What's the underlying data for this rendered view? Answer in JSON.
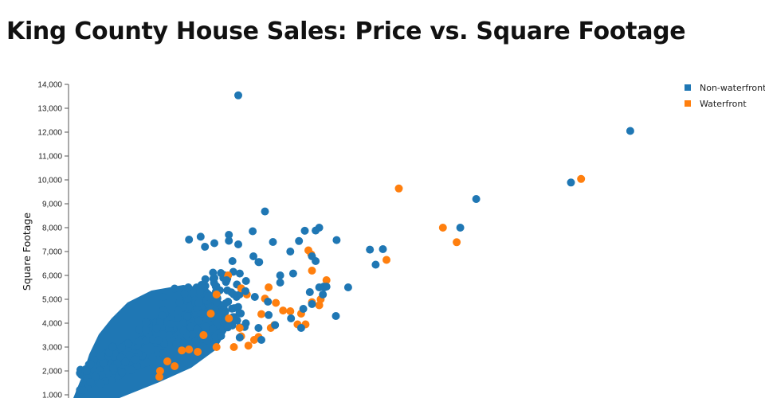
{
  "chart_data": {
    "type": "scatter",
    "title": "King County House Sales: Price vs. Square Footage",
    "xlabel": "",
    "ylabel": "Square Footage",
    "ylim": [
      1000,
      14000
    ],
    "xlim": [
      0,
      7800000
    ],
    "yticks": [
      "1,000",
      "2,000",
      "3,000",
      "4,000",
      "5,000",
      "6,000",
      "7,000",
      "8,000",
      "9,000",
      "10,000",
      "11,000",
      "12,000",
      "13,000",
      "14,000"
    ],
    "ytick_values": [
      1000,
      2000,
      3000,
      4000,
      5000,
      6000,
      7000,
      8000,
      9000,
      10000,
      11000,
      12000,
      13000,
      14000
    ],
    "grid": false,
    "legend_position": "top-right",
    "series": [
      {
        "name": "Non-waterfront",
        "color": "#1f77b4",
        "points": [
          [
            2280000,
            13540
          ],
          [
            7700000,
            12050
          ],
          [
            6880000,
            9890
          ],
          [
            5570000,
            9200
          ],
          [
            5350000,
            8000
          ],
          [
            3640000,
            7480
          ],
          [
            4280000,
            7100
          ],
          [
            4100000,
            7080
          ],
          [
            4180000,
            6450
          ],
          [
            3120000,
            7440
          ],
          [
            3400000,
            8000
          ],
          [
            3350000,
            7880
          ],
          [
            3200000,
            7870
          ],
          [
            2650000,
            8680
          ],
          [
            2280000,
            7300
          ],
          [
            3000000,
            7000
          ],
          [
            1600000,
            7500
          ],
          [
            1950000,
            7350
          ],
          [
            2150000,
            7700
          ],
          [
            2150000,
            7450
          ],
          [
            1760000,
            7620
          ],
          [
            2480000,
            7850
          ],
          [
            2490000,
            6800
          ],
          [
            2200000,
            6600
          ],
          [
            1820000,
            7200
          ],
          [
            2760000,
            7400
          ],
          [
            2570000,
            6560
          ],
          [
            2860000,
            6000
          ],
          [
            3040000,
            6080
          ],
          [
            3470000,
            5500
          ],
          [
            3460000,
            5530
          ],
          [
            3500000,
            5530
          ],
          [
            3800000,
            5500
          ],
          [
            3630000,
            4300
          ],
          [
            3400000,
            5500
          ],
          [
            3270000,
            5300
          ],
          [
            3180000,
            4600
          ],
          [
            3010000,
            4200
          ],
          [
            2700000,
            4340
          ],
          [
            2690000,
            4900
          ],
          [
            2510000,
            5100
          ],
          [
            2380000,
            5340
          ],
          [
            2120000,
            5800
          ],
          [
            2040000,
            6100
          ],
          [
            1770000,
            5600
          ],
          [
            1590000,
            5500
          ],
          [
            1400000,
            5450
          ],
          [
            1240000,
            5100
          ],
          [
            2790000,
            3920
          ],
          [
            2560000,
            3800
          ],
          [
            2300000,
            3400
          ],
          [
            3350000,
            6600
          ],
          [
            3300000,
            6800
          ],
          [
            2560000,
            6560
          ],
          [
            2860000,
            5700
          ],
          [
            3450000,
            5200
          ],
          [
            3300000,
            4800
          ],
          [
            3150000,
            3800
          ],
          [
            2600000,
            3300
          ]
        ]
      },
      {
        "name": "Waterfront",
        "color": "#ff7f0e",
        "points": [
          [
            7020000,
            10040
          ],
          [
            4500000,
            9640
          ],
          [
            5110000,
            8000
          ],
          [
            5300000,
            7390
          ],
          [
            4330000,
            6650
          ],
          [
            3300000,
            6200
          ],
          [
            3290000,
            6880
          ],
          [
            3250000,
            7050
          ],
          [
            3500000,
            5800
          ],
          [
            3420000,
            5000
          ],
          [
            3300000,
            4880
          ],
          [
            3150000,
            4400
          ],
          [
            3100000,
            3950
          ],
          [
            3400000,
            4750
          ],
          [
            2900000,
            4530
          ],
          [
            2730000,
            3800
          ],
          [
            2780000,
            3920
          ],
          [
            3210000,
            3950
          ],
          [
            2500000,
            3300
          ],
          [
            2560000,
            3420
          ],
          [
            2300000,
            3800
          ],
          [
            2150000,
            4200
          ],
          [
            1980000,
            3000
          ],
          [
            2220000,
            3000
          ],
          [
            2320000,
            3450
          ],
          [
            2140000,
            6000
          ],
          [
            2320000,
            5460
          ],
          [
            2400000,
            5200
          ],
          [
            2420000,
            3060
          ],
          [
            2650000,
            5030
          ],
          [
            1900000,
            4400
          ],
          [
            1720000,
            2800
          ],
          [
            1600000,
            2900
          ],
          [
            1500000,
            2860
          ],
          [
            1400000,
            2200
          ],
          [
            1190000,
            1750
          ],
          [
            1200000,
            2000
          ],
          [
            1300000,
            2400
          ],
          [
            1800000,
            3500
          ],
          [
            2600000,
            4380
          ],
          [
            2800000,
            4850
          ],
          [
            3000000,
            4500
          ],
          [
            2700000,
            5500
          ],
          [
            1980000,
            5200
          ]
        ]
      }
    ]
  }
}
